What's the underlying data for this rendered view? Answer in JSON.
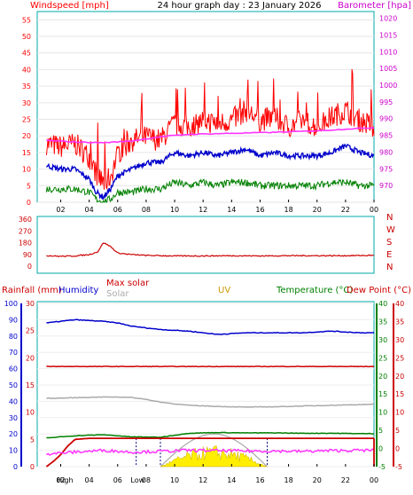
{
  "header": {
    "title": "24 hour graph day : 23 January 2026",
    "wind_label": "Windspeed [mph]",
    "baro_label": "Barometer [hpa]"
  },
  "middle_header": {
    "rain_label": "Rainfall (mm)",
    "humidity_label": "Humidity",
    "maxsolar_label": "Max solar",
    "solar_label": "Solar",
    "uv_label": "UV",
    "temp_label": "Temperature (°C)",
    "dew_label": "Dew Point (°C)"
  },
  "colors": {
    "wind_gust": "#ff0000",
    "wind_avg": "#0000cc",
    "wind_min": "#008000",
    "barometer": "#ff33ff",
    "direction": "#cc0000",
    "rain": "#cc0000",
    "humidity": "#0000cc",
    "solar": "#aaaaaa",
    "uv": "#cc9900",
    "temperature": "#008000",
    "dewpoint": "#cc0000",
    "sun_fill": "#ffee00",
    "frame": "#00aaaa"
  },
  "chart_data": [
    {
      "type": "line",
      "title": "24 hour graph day : 23 January 2026",
      "x_tick_labels": [
        "02",
        "04",
        "06",
        "08",
        "10",
        "12",
        "14",
        "16",
        "18",
        "20",
        "22",
        "00"
      ],
      "xlim": [
        1,
        24
      ],
      "y_left": {
        "label": "Windspeed [mph]",
        "ylim": [
          0,
          57.5
        ],
        "ticks": [
          0,
          5,
          10,
          15,
          20,
          25,
          30,
          35,
          40,
          45,
          50,
          55
        ]
      },
      "y_right": {
        "label": "Barometer [hpa]",
        "ylim": [
          965,
          1022
        ],
        "ticks": [
          970,
          975,
          980,
          985,
          990,
          995,
          1000,
          1005,
          1010,
          1015,
          1020
        ]
      },
      "series": [
        {
          "axis": "left",
          "x": [
            1,
            2,
            3,
            4,
            4.5,
            5,
            5.5,
            6,
            7,
            8,
            9,
            10,
            11,
            12,
            13,
            14,
            15,
            16,
            17,
            18,
            19,
            20,
            21,
            22,
            23,
            24
          ],
          "values": [
            17,
            16,
            17,
            13,
            8,
            5,
            7,
            14,
            18,
            19,
            18,
            23,
            22,
            24,
            23,
            24,
            27,
            24,
            25,
            22,
            24,
            22,
            25,
            27,
            24,
            22
          ]
        },
        {
          "axis": "left",
          "x": [
            1,
            2,
            3,
            4,
            4.5,
            5,
            5.5,
            6,
            7,
            8,
            9,
            10,
            11,
            12,
            13,
            14,
            15,
            16,
            17,
            18,
            19,
            20,
            21,
            22,
            23,
            24
          ],
          "values": [
            11,
            10,
            10,
            7,
            3,
            1.5,
            4,
            8,
            10,
            12,
            12,
            15,
            14,
            15,
            14,
            15,
            16,
            14,
            15,
            14,
            14,
            14,
            15,
            17,
            15,
            14
          ]
        },
        {
          "axis": "left",
          "x": [
            1,
            2,
            3,
            4,
            4.5,
            5,
            5.5,
            6,
            7,
            8,
            9,
            10,
            11,
            12,
            13,
            14,
            15,
            16,
            17,
            18,
            19,
            20,
            21,
            22,
            23,
            24
          ],
          "values": [
            4,
            4,
            4,
            3,
            1,
            0,
            1,
            3,
            3,
            4,
            4,
            6,
            5,
            6,
            5,
            6,
            6,
            5,
            5,
            5,
            5,
            5,
            6,
            6,
            5,
            5
          ]
        },
        {
          "axis": "right",
          "x": [
            1,
            3,
            5,
            7,
            9,
            11,
            13,
            15,
            17,
            19,
            21,
            23,
            24
          ],
          "values": [
            983.5,
            983,
            982.8,
            983.3,
            984.6,
            985.3,
            985.5,
            985.7,
            985.9,
            986.2,
            986.6,
            987.1,
            987.3
          ]
        }
      ]
    },
    {
      "type": "scatter",
      "y_tick_labels": [
        "360",
        "270",
        "180",
        "90",
        "0"
      ],
      "y_ticks": [
        360,
        270,
        180,
        90,
        0
      ],
      "compass_labels": [
        "N",
        "W",
        "S",
        "E",
        "N"
      ],
      "x": [
        1,
        2,
        3,
        4,
        4.6,
        5,
        5.5,
        6,
        7,
        8,
        10,
        12,
        14,
        16,
        18,
        20,
        22,
        24
      ],
      "values": [
        80,
        75,
        78,
        88,
        110,
        180,
        150,
        100,
        88,
        82,
        78,
        78,
        80,
        78,
        80,
        80,
        80,
        82
      ]
    },
    {
      "type": "line",
      "x_tick_labels": [
        "02",
        "04",
        "06",
        "08",
        "10",
        "12",
        "14",
        "16",
        "18",
        "20",
        "22",
        "00"
      ],
      "xlim": [
        1,
        24
      ],
      "y_humidity": {
        "label": "Humidity",
        "ylim": [
          0,
          100
        ],
        "ticks": [
          0,
          10,
          20,
          30,
          40,
          50,
          60,
          70,
          80,
          90,
          100
        ]
      },
      "y_rain": {
        "label": "Rainfall (mm)",
        "ylim": [
          0,
          30
        ],
        "ticks": [
          0,
          5,
          10,
          15,
          20,
          25,
          30
        ]
      },
      "y_temp": {
        "label": "Temperature (°C)",
        "ylim": [
          -5,
          40
        ],
        "ticks": [
          -5,
          0,
          5,
          10,
          15,
          20,
          25,
          30,
          35,
          40
        ]
      },
      "y_dew": {
        "label": "Dew Point (°C)",
        "ylim": [
          -5,
          40
        ],
        "ticks": [
          -5,
          0,
          5,
          10,
          15,
          20,
          25,
          30,
          35,
          40
        ]
      },
      "events": [
        {
          "label": "High",
          "x": 2.3
        },
        {
          "label": "Low",
          "x": 7.4
        }
      ],
      "series": [
        {
          "axis": "humidity",
          "x": [
            1,
            3,
            5,
            6,
            7,
            8,
            9,
            11,
            13,
            15,
            17,
            19,
            21,
            23,
            24
          ],
          "values": [
            88,
            90,
            89,
            88,
            86,
            85,
            84,
            83,
            81,
            82,
            82,
            82,
            83,
            82,
            82
          ]
        },
        {
          "axis": "temp",
          "x": [
            1,
            24
          ],
          "values": [
            22.6,
            22.6
          ]
        },
        {
          "axis": "temp",
          "x": [
            1,
            3,
            5,
            7,
            8,
            9,
            10,
            11,
            13,
            15,
            17,
            19,
            21,
            23,
            24
          ],
          "values": [
            13.8,
            14,
            14.2,
            14.1,
            13.5,
            12.8,
            12.3,
            11.9,
            11.6,
            11.4,
            11.5,
            11.7,
            11.9,
            12.1,
            12.2
          ]
        },
        {
          "axis": "temp",
          "x": [
            1,
            3,
            5,
            7,
            9,
            11,
            13,
            15,
            17,
            19,
            21,
            23,
            24
          ],
          "values": [
            2.9,
            3.5,
            3.8,
            3.2,
            3.1,
            4.2,
            4.4,
            4.3,
            4.3,
            4.2,
            4.2,
            4.1,
            4.1
          ]
        },
        {
          "axis": "rain",
          "x": [
            1,
            1.5,
            2,
            2.5,
            3,
            4,
            24
          ],
          "values": [
            0,
            1,
            2.2,
            3.8,
            5,
            5.2,
            5.2
          ]
        },
        {
          "axis": "temp",
          "x": [
            1,
            3,
            5,
            7,
            9,
            11,
            13,
            15,
            17,
            19,
            21,
            23,
            24
          ],
          "values": [
            -1.5,
            -1,
            -0.5,
            -1,
            -0.8,
            -0.5,
            -0.6,
            -0.7,
            -0.7,
            -0.8,
            -0.6,
            -0.5,
            -0.5
          ]
        }
      ]
    }
  ]
}
